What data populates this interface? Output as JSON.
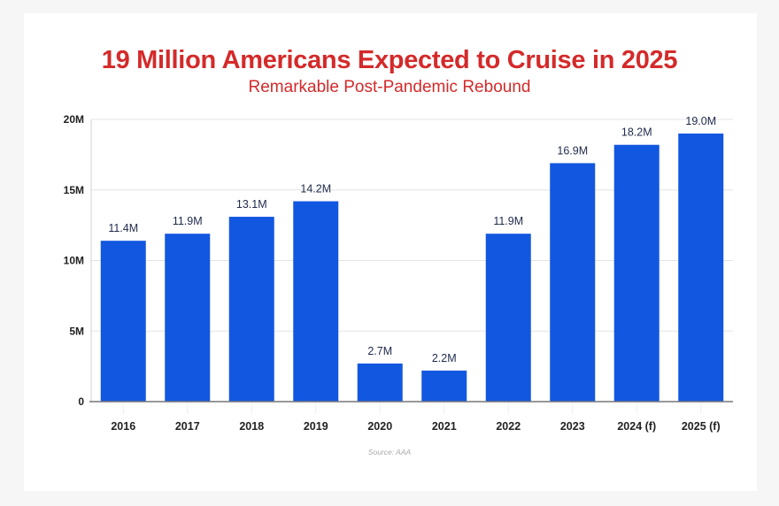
{
  "chart_data": {
    "type": "bar",
    "title": "19 Million Americans Expected to Cruise in 2025",
    "subtitle": "Remarkable Post-Pandemic Rebound",
    "categories": [
      "2016",
      "2017",
      "2018",
      "2019",
      "2020",
      "2021",
      "2022",
      "2023",
      "2024 (f)",
      "2025 (f)"
    ],
    "values": [
      11.4,
      11.9,
      13.1,
      14.2,
      2.7,
      2.2,
      11.9,
      16.9,
      18.2,
      19.0
    ],
    "data_labels": [
      "11.4M",
      "11.9M",
      "13.1M",
      "14.2M",
      "2.7M",
      "2.2M",
      "11.9M",
      "16.9M",
      "18.2M",
      "19.0M"
    ],
    "xlabel": "",
    "ylabel": "",
    "ylim": [
      0,
      20
    ],
    "yticks": [
      0,
      5,
      10,
      15,
      20
    ],
    "ytick_labels": [
      "0",
      "5M",
      "10M",
      "15M",
      "20M"
    ],
    "grid": true,
    "source": "Source: AAA",
    "colors": {
      "bar": "#1257e0",
      "title": "#d42a2a",
      "label": "#1e2a4a"
    }
  }
}
